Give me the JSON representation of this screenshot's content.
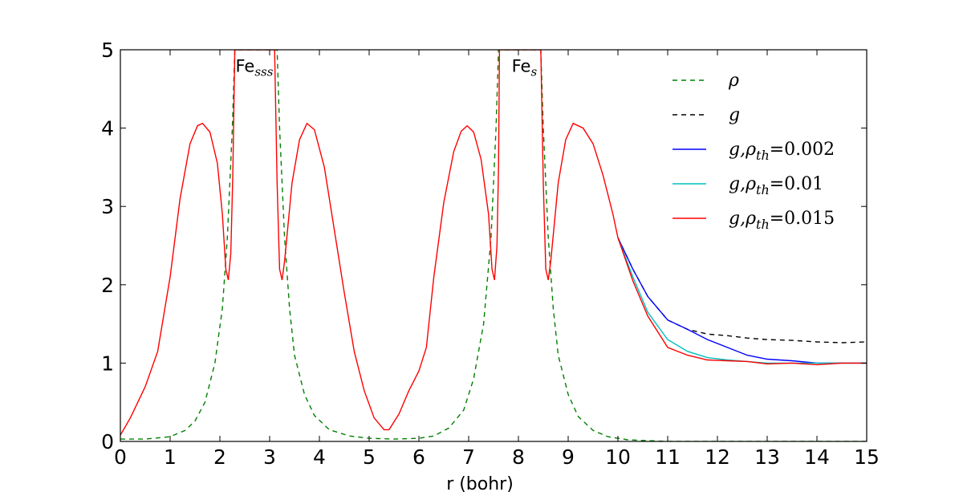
{
  "chart_data": {
    "type": "line",
    "title": "",
    "xlabel": "r (bohr)",
    "ylabel": "",
    "xlim": [
      0,
      15
    ],
    "ylim": [
      0,
      5
    ],
    "xticks": [
      "0",
      "1",
      "2",
      "3",
      "4",
      "5",
      "6",
      "7",
      "8",
      "9",
      "10",
      "11",
      "12",
      "13",
      "14",
      "15"
    ],
    "yticks": [
      "0",
      "1",
      "2",
      "3",
      "4",
      "5"
    ],
    "grid": false,
    "legend_position": "top-right",
    "annotations": [
      {
        "base": "Fe",
        "sub": "sss",
        "x": 2.25,
        "y": 4.72
      },
      {
        "base": "Fe",
        "sub": "s",
        "x": 7.8,
        "y": 4.72
      }
    ],
    "series": [
      {
        "name": "ρ",
        "legend_base": "ρ",
        "legend_sub": "",
        "legend_value": "",
        "color": "#008000",
        "style": "dashed",
        "points": [
          [
            0,
            0.03
          ],
          [
            0.5,
            0.03
          ],
          [
            1.0,
            0.06
          ],
          [
            1.3,
            0.14
          ],
          [
            1.5,
            0.26
          ],
          [
            1.7,
            0.5
          ],
          [
            1.9,
            1.0
          ],
          [
            2.05,
            1.7
          ],
          [
            2.15,
            2.6
          ],
          [
            2.25,
            4.0
          ],
          [
            2.3,
            5.0
          ],
          [
            3.15,
            5.0
          ],
          [
            3.2,
            4.0
          ],
          [
            3.3,
            2.6
          ],
          [
            3.4,
            1.7
          ],
          [
            3.5,
            1.1
          ],
          [
            3.7,
            0.6
          ],
          [
            3.9,
            0.33
          ],
          [
            4.2,
            0.15
          ],
          [
            4.6,
            0.07
          ],
          [
            5.0,
            0.04
          ],
          [
            5.5,
            0.03
          ],
          [
            6.0,
            0.04
          ],
          [
            6.3,
            0.07
          ],
          [
            6.6,
            0.17
          ],
          [
            6.9,
            0.4
          ],
          [
            7.1,
            0.8
          ],
          [
            7.3,
            1.5
          ],
          [
            7.45,
            2.6
          ],
          [
            7.55,
            4.0
          ],
          [
            7.6,
            5.0
          ],
          [
            8.45,
            5.0
          ],
          [
            8.5,
            4.0
          ],
          [
            8.6,
            2.6
          ],
          [
            8.7,
            1.7
          ],
          [
            8.8,
            1.1
          ],
          [
            9.0,
            0.6
          ],
          [
            9.2,
            0.32
          ],
          [
            9.5,
            0.14
          ],
          [
            9.8,
            0.06
          ],
          [
            10.2,
            0.02
          ],
          [
            11,
            0.0
          ],
          [
            15,
            0.0
          ]
        ]
      },
      {
        "name": "g",
        "legend_base": "g",
        "legend_sub": "",
        "legend_value": "",
        "color": "#000000",
        "style": "dashed",
        "points": [
          [
            10.0,
            2.6
          ],
          [
            10.3,
            2.2
          ],
          [
            10.6,
            1.85
          ],
          [
            11.0,
            1.55
          ],
          [
            11.4,
            1.43
          ],
          [
            11.8,
            1.37
          ],
          [
            12.2,
            1.35
          ],
          [
            12.6,
            1.32
          ],
          [
            13.0,
            1.3
          ],
          [
            13.5,
            1.29
          ],
          [
            14.0,
            1.27
          ],
          [
            14.5,
            1.26
          ],
          [
            15.0,
            1.27
          ]
        ]
      },
      {
        "name": "g,ρth=0.002",
        "legend_base": "g,ρ",
        "legend_sub": "th",
        "legend_value": "=0.002",
        "color": "#0000ff",
        "style": "solid",
        "points": [
          [
            10.0,
            2.6
          ],
          [
            10.3,
            2.2
          ],
          [
            10.6,
            1.85
          ],
          [
            11.0,
            1.55
          ],
          [
            11.4,
            1.43
          ],
          [
            11.8,
            1.3
          ],
          [
            12.2,
            1.2
          ],
          [
            12.6,
            1.1
          ],
          [
            13.0,
            1.05
          ],
          [
            13.5,
            1.03
          ],
          [
            14.0,
            1.0
          ],
          [
            14.5,
            1.0
          ],
          [
            15.0,
            1.0
          ]
        ]
      },
      {
        "name": "g,ρth=0.01",
        "legend_base": "g,ρ",
        "legend_sub": "th",
        "legend_value": "=0.01",
        "color": "#00bfbf",
        "style": "solid",
        "points": [
          [
            10.0,
            2.6
          ],
          [
            10.3,
            2.1
          ],
          [
            10.6,
            1.65
          ],
          [
            11.0,
            1.3
          ],
          [
            11.4,
            1.15
          ],
          [
            11.8,
            1.07
          ],
          [
            12.2,
            1.04
          ],
          [
            12.6,
            1.02
          ],
          [
            13.0,
            1.0
          ],
          [
            13.5,
            1.0
          ],
          [
            14.0,
            1.0
          ],
          [
            14.5,
            1.0
          ],
          [
            15.0,
            1.0
          ]
        ]
      },
      {
        "name": "g,ρth=0.015",
        "legend_base": "g,ρ",
        "legend_sub": "th",
        "legend_value": "=0.015",
        "color": "#ff0000",
        "style": "solid",
        "points": [
          [
            0,
            0.08
          ],
          [
            0.2,
            0.3
          ],
          [
            0.5,
            0.7
          ],
          [
            0.75,
            1.15
          ],
          [
            1.0,
            2.1
          ],
          [
            1.2,
            3.1
          ],
          [
            1.4,
            3.8
          ],
          [
            1.55,
            4.03
          ],
          [
            1.65,
            4.06
          ],
          [
            1.8,
            3.95
          ],
          [
            1.95,
            3.55
          ],
          [
            2.05,
            2.9
          ],
          [
            2.12,
            2.2
          ],
          [
            2.17,
            2.06
          ],
          [
            2.22,
            2.4
          ],
          [
            2.26,
            3.4
          ],
          [
            2.3,
            5.0
          ],
          [
            3.1,
            5.0
          ],
          [
            3.15,
            3.3
          ],
          [
            3.2,
            2.2
          ],
          [
            3.25,
            2.06
          ],
          [
            3.3,
            2.3
          ],
          [
            3.45,
            3.3
          ],
          [
            3.6,
            3.85
          ],
          [
            3.75,
            4.06
          ],
          [
            3.9,
            3.98
          ],
          [
            4.1,
            3.5
          ],
          [
            4.3,
            2.7
          ],
          [
            4.5,
            1.9
          ],
          [
            4.7,
            1.15
          ],
          [
            4.9,
            0.65
          ],
          [
            5.1,
            0.3
          ],
          [
            5.3,
            0.15
          ],
          [
            5.4,
            0.15
          ],
          [
            5.6,
            0.35
          ],
          [
            5.8,
            0.65
          ],
          [
            6.0,
            0.9
          ],
          [
            6.15,
            1.2
          ],
          [
            6.3,
            2.1
          ],
          [
            6.5,
            3.05
          ],
          [
            6.7,
            3.7
          ],
          [
            6.85,
            3.96
          ],
          [
            6.97,
            4.03
          ],
          [
            7.1,
            3.95
          ],
          [
            7.25,
            3.6
          ],
          [
            7.4,
            2.9
          ],
          [
            7.47,
            2.2
          ],
          [
            7.52,
            2.06
          ],
          [
            7.57,
            2.5
          ],
          [
            7.6,
            3.5
          ],
          [
            7.62,
            5.0
          ],
          [
            8.45,
            5.0
          ],
          [
            8.5,
            3.3
          ],
          [
            8.55,
            2.2
          ],
          [
            8.6,
            2.06
          ],
          [
            8.65,
            2.3
          ],
          [
            8.8,
            3.3
          ],
          [
            8.95,
            3.85
          ],
          [
            9.1,
            4.06
          ],
          [
            9.3,
            4.0
          ],
          [
            9.5,
            3.8
          ],
          [
            9.7,
            3.4
          ],
          [
            9.9,
            2.9
          ],
          [
            10.0,
            2.6
          ],
          [
            10.3,
            2.05
          ],
          [
            10.6,
            1.6
          ],
          [
            11.0,
            1.2
          ],
          [
            11.4,
            1.1
          ],
          [
            11.8,
            1.04
          ],
          [
            12.2,
            1.03
          ],
          [
            12.6,
            1.02
          ],
          [
            13.0,
            0.99
          ],
          [
            13.5,
            1.0
          ],
          [
            14.0,
            0.98
          ],
          [
            14.5,
            1.0
          ],
          [
            15.0,
            1.0
          ]
        ]
      }
    ]
  }
}
